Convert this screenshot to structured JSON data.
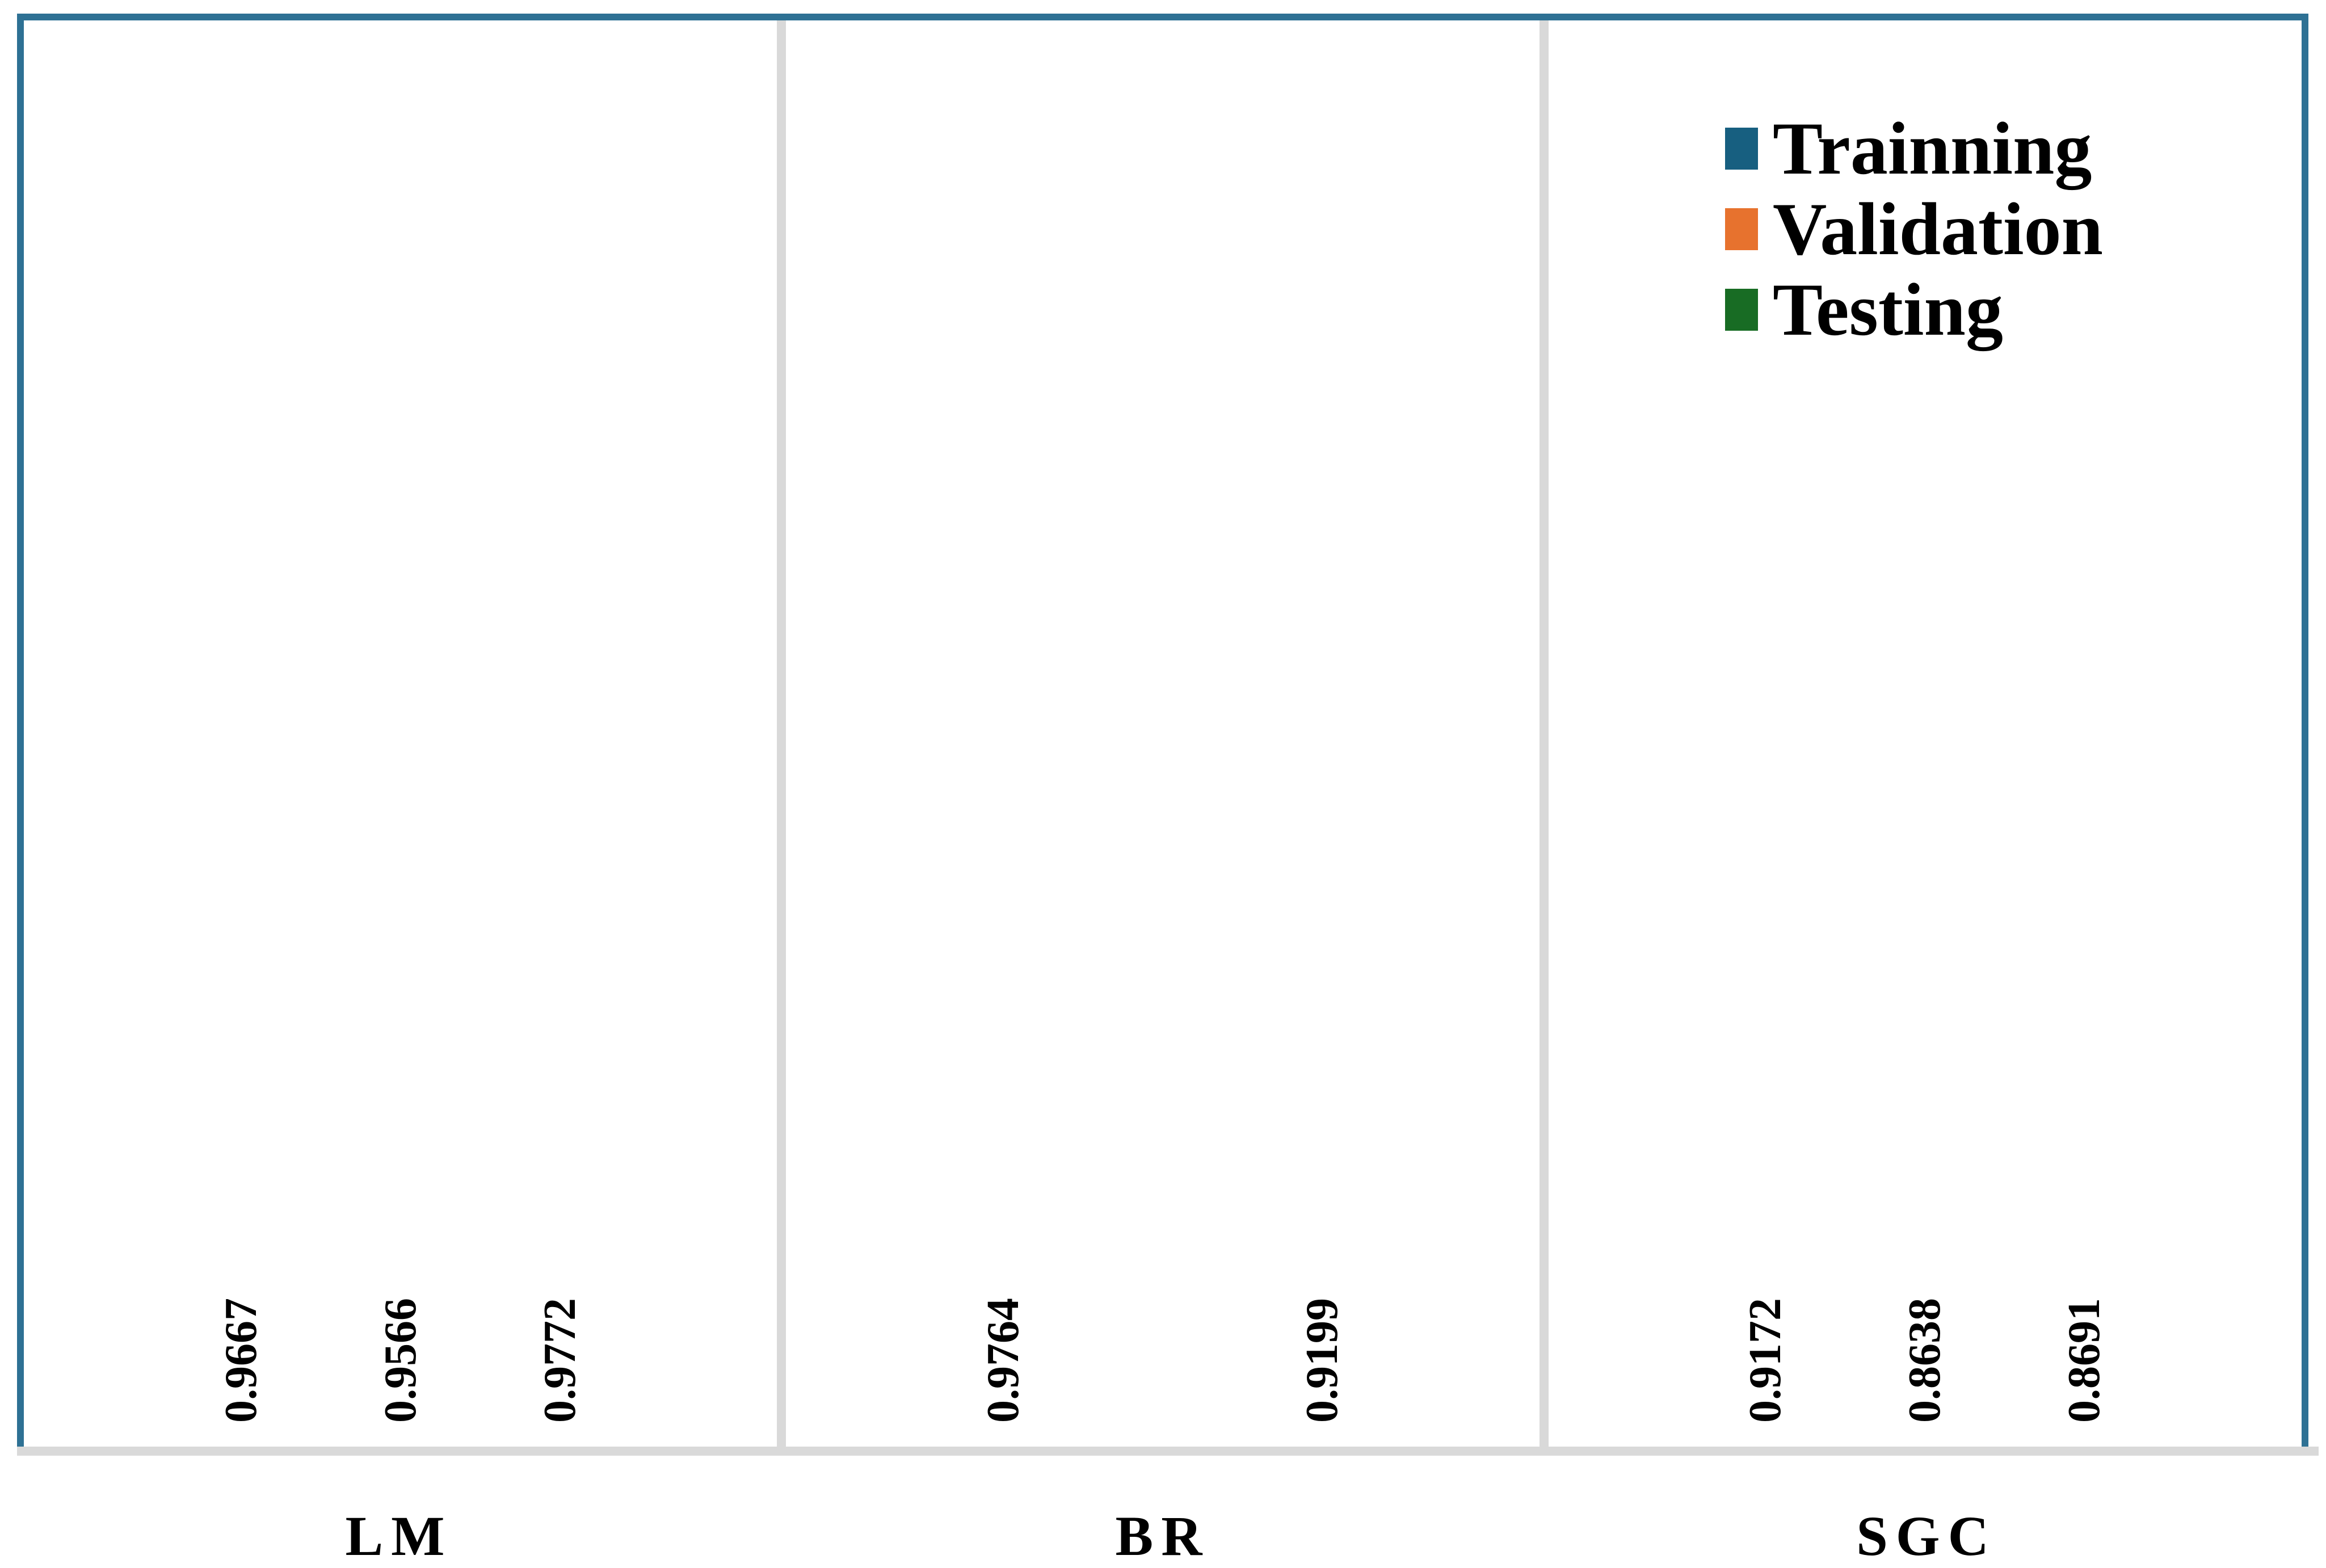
{
  "chart_data": {
    "type": "bar",
    "title": "",
    "categories": [
      "LM",
      "BR",
      "SGC"
    ],
    "series": [
      {
        "name": "Trainning",
        "color": "#175F80",
        "values": [
          0.9667,
          0.9764,
          0.9172
        ]
      },
      {
        "name": "Validation",
        "color": "#E7722E",
        "values": [
          0.9566,
          null,
          0.8638
        ]
      },
      {
        "name": "Testing",
        "color": "#186C24",
        "values": [
          0.9772,
          0.9199,
          0.8691
        ]
      }
    ],
    "value_label_decimals": 4,
    "axis": {
      "min": 0.8,
      "max": 1.0,
      "visible": false
    },
    "grid": false,
    "legend_position": "top-right",
    "bar_orientation": "vertical",
    "value_label_rotation_deg": 90
  },
  "frame": {
    "border_color": "#2E7194",
    "separator_color": "#D9D9D9",
    "baseline_color": "#D9D9D9",
    "background": "#ffffff"
  }
}
